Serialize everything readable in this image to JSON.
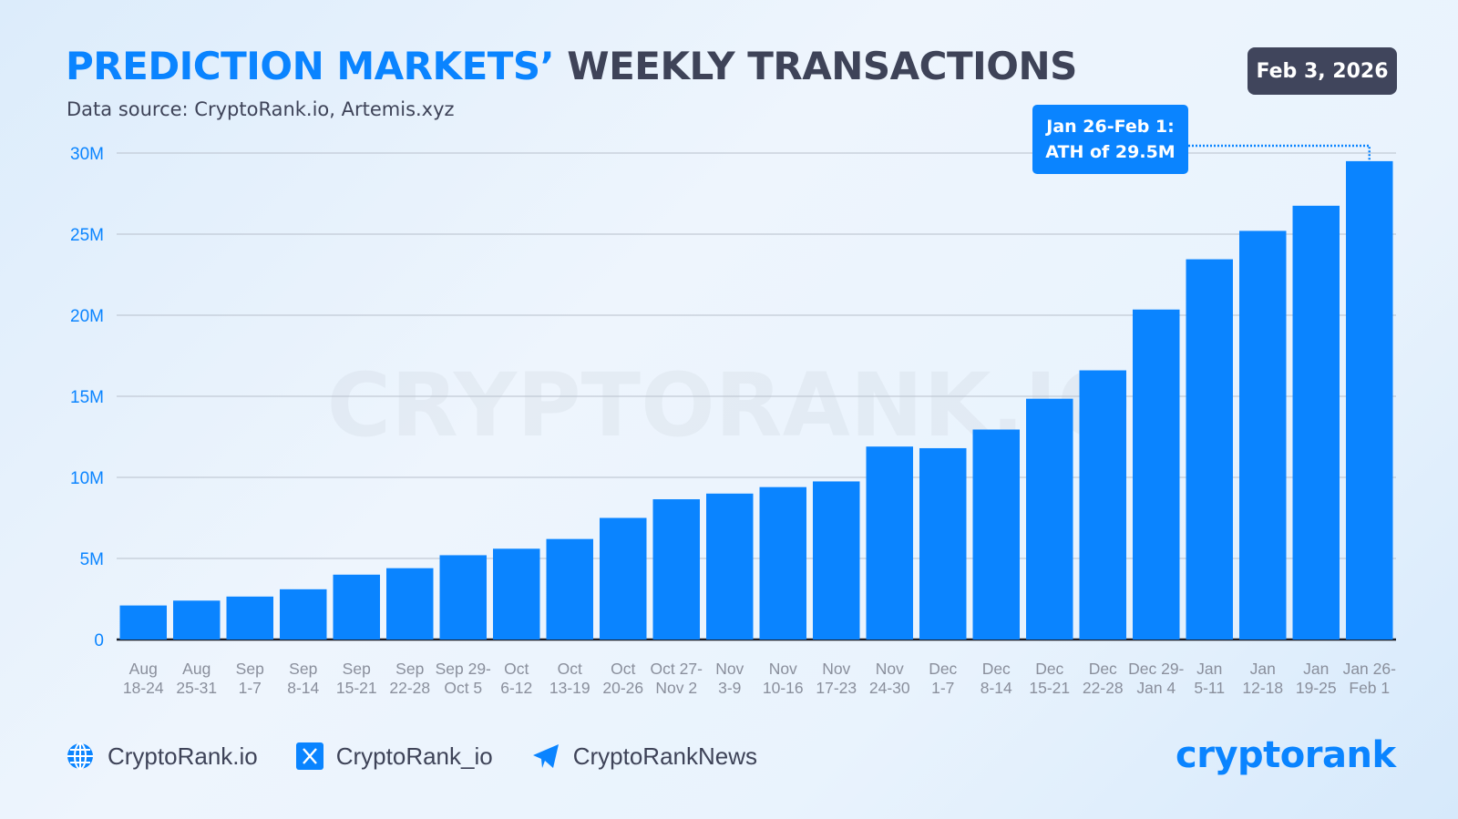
{
  "header": {
    "title_highlight": "PREDICTION MARKETS’",
    "title_rest": " WEEKLY TRANSACTIONS",
    "subtitle": "Data source: CryptoRank.io, Artemis.xyz",
    "date_badge": "Feb 3, 2026"
  },
  "annotation": {
    "line1": "Jan 26-Feb 1:",
    "line2": "ATH of 29.5M"
  },
  "watermark": "CRYPTORANK.IO",
  "colors": {
    "bar": "#0a84ff",
    "title_accent": "#0a84ff",
    "title_dark": "#3e4358",
    "badge": "#40455c"
  },
  "chart_data": {
    "type": "bar",
    "title": "PREDICTION MARKETS’ WEEKLY TRANSACTIONS",
    "ylim": [
      0,
      30000000
    ],
    "yticks": [
      {
        "value": 0,
        "label": "0"
      },
      {
        "value": 5000000,
        "label": "5M"
      },
      {
        "value": 10000000,
        "label": "10M"
      },
      {
        "value": 15000000,
        "label": "15M"
      },
      {
        "value": 20000000,
        "label": "20M"
      },
      {
        "value": 25000000,
        "label": "25M"
      },
      {
        "value": 30000000,
        "label": "30M"
      }
    ],
    "grid": true,
    "categories": [
      [
        "Aug",
        "18-24"
      ],
      [
        "Aug",
        "25-31"
      ],
      [
        "Sep",
        "1-7"
      ],
      [
        "Sep",
        "8-14"
      ],
      [
        "Sep",
        "15-21"
      ],
      [
        "Sep",
        "22-28"
      ],
      [
        "Sep 29-",
        "Oct 5"
      ],
      [
        "Oct",
        "6-12"
      ],
      [
        "Oct",
        "13-19"
      ],
      [
        "Oct",
        "20-26"
      ],
      [
        "Oct 27-",
        "Nov 2"
      ],
      [
        "Nov",
        "3-9"
      ],
      [
        "Nov",
        "10-16"
      ],
      [
        "Nov",
        "17-23"
      ],
      [
        "Nov",
        "24-30"
      ],
      [
        "Dec",
        "1-7"
      ],
      [
        "Dec",
        "8-14"
      ],
      [
        "Dec",
        "15-21"
      ],
      [
        "Dec",
        "22-28"
      ],
      [
        "Dec 29-",
        "Jan 4"
      ],
      [
        "Jan",
        "5-11"
      ],
      [
        "Jan",
        "12-18"
      ],
      [
        "Jan",
        "19-25"
      ],
      [
        "Jan 26-",
        "Feb 1"
      ]
    ],
    "values": [
      2100000,
      2400000,
      2650000,
      3100000,
      4000000,
      4400000,
      5200000,
      5600000,
      6200000,
      7500000,
      8650000,
      9000000,
      9400000,
      9750000,
      11900000,
      11800000,
      12950000,
      14850000,
      16600000,
      20350000,
      23450000,
      25200000,
      26750000,
      29500000
    ]
  },
  "footer": {
    "website": "CryptoRank.io",
    "x_handle": "CryptoRank_io",
    "telegram": "CryptoRankNews",
    "logo": "cryptorank"
  }
}
